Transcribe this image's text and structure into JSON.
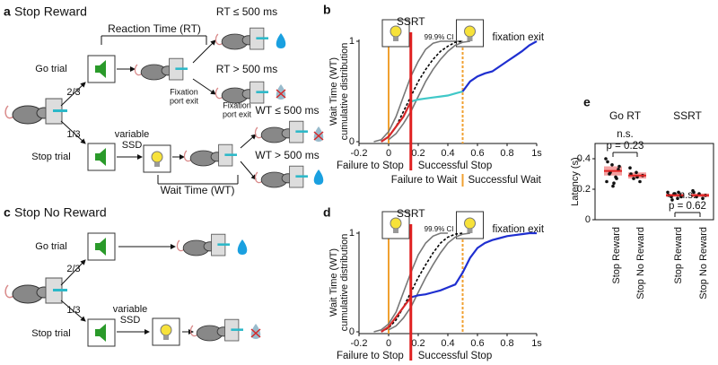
{
  "panel_a": {
    "letter": "a",
    "title": "Stop Reward",
    "rt_label": "Reaction Time (RT)",
    "go": "Go trial",
    "p_go": "2/3",
    "p_stop": "1/3",
    "stop": "Stop trial",
    "variable": "variable",
    "ssd": "SSD",
    "fix1": [
      "Fixation",
      "port exit"
    ],
    "fix2": [
      "Fixation",
      "port exit"
    ],
    "wt_label": "Wait Time (WT)",
    "rt_fast": "RT ≤ 500 ms",
    "rt_slow": "RT > 500 ms",
    "wt_fast": "WT ≤ 500 ms",
    "wt_slow": "WT > 500 ms"
  },
  "panel_c": {
    "letter": "c",
    "title": "Stop No Reward",
    "go": "Go trial",
    "p_go": "2/3",
    "p_stop": "1/3",
    "stop": "Stop trial",
    "variable": "variable",
    "ssd": "SSD"
  },
  "panel_letters": {
    "b": "b",
    "d": "d",
    "e": "e"
  },
  "chart_data": [
    {
      "type": "line",
      "y_label": [
        "Wait Time (WT)",
        "cumulative distribution"
      ],
      "x": [
        -0.1,
        -0.05,
        0,
        0.05,
        0.1,
        0.15,
        0.2,
        0.25,
        0.3,
        0.35,
        0.4,
        0.45,
        0.5,
        0.55,
        0.6,
        0.65,
        0.7,
        0.75,
        0.8,
        0.85,
        0.9,
        0.95,
        1.0
      ],
      "series": [
        {
          "color": "#777777",
          "values": [
            0,
            0.02,
            0.1,
            0.25,
            0.45,
            0.65,
            0.8,
            0.92,
            0.98,
            1,
            1,
            1,
            1,
            null,
            null,
            null,
            null,
            null,
            null,
            null,
            null,
            null,
            null
          ]
        },
        {
          "color": "#000000",
          "dashed": true,
          "values": [
            null,
            0,
            0.05,
            0.15,
            0.3,
            0.45,
            0.6,
            0.72,
            0.82,
            0.9,
            0.95,
            0.99,
            1,
            null,
            null,
            null,
            null,
            null,
            null,
            null,
            null,
            null,
            null
          ]
        },
        {
          "color": "#777777",
          "values": [
            null,
            null,
            0.02,
            0.08,
            0.18,
            0.3,
            0.45,
            0.6,
            0.72,
            0.82,
            0.9,
            0.96,
            0.99,
            1,
            null,
            null,
            null,
            null,
            null,
            null,
            null,
            null,
            null
          ]
        },
        {
          "color": "#d62728",
          "values": [
            null,
            0,
            0.05,
            0.15,
            0.25,
            0.4,
            null,
            null,
            null,
            null,
            null,
            null,
            null,
            null,
            null,
            null,
            null,
            null,
            null,
            null,
            null,
            null,
            null
          ]
        },
        {
          "color": "#40c8c8",
          "values": [
            null,
            null,
            null,
            null,
            null,
            0.4,
            0.42,
            0.43,
            0.44,
            0.45,
            0.46,
            0.48,
            0.5,
            null,
            null,
            null,
            null,
            null,
            null,
            null,
            null,
            null,
            null
          ]
        },
        {
          "color": "#1f2fd0",
          "values": [
            null,
            null,
            null,
            null,
            null,
            null,
            null,
            null,
            null,
            null,
            null,
            null,
            0.5,
            0.6,
            0.65,
            0.68,
            0.7,
            0.75,
            0.8,
            0.85,
            0.9,
            0.96,
            1
          ]
        }
      ],
      "xlim": [
        -0.2,
        1
      ],
      "xticks": [
        -0.2,
        0,
        0.2,
        0.4,
        0.6,
        0.8,
        {
          "value": 1,
          "label": "1s"
        }
      ],
      "ylim": [
        0,
        1
      ],
      "yticks": [
        0,
        1
      ],
      "vlines": [
        {
          "x": 0,
          "color": "#f0a030"
        },
        {
          "x": 0.5,
          "color": "#f0a030",
          "dashed": true
        }
      ],
      "ssrt": {
        "text": "SSRT",
        "x": 0.15,
        "color": "#e02020"
      },
      "annotations": [
        {
          "text": "99.9% CI",
          "color": "#777777"
        },
        {
          "text": "fixation exit",
          "color": "#111111"
        },
        {
          "text": "Failure to Stop",
          "color": "#d62728"
        },
        {
          "text": "Successful Stop",
          "color": "#111111"
        },
        {
          "text": "Failure to Wait",
          "color": "#40c8c8"
        },
        {
          "text": "Successful Wait",
          "color": "#1f2fd0"
        }
      ]
    },
    {
      "type": "line",
      "y_label": [
        "Wait Time (WT)",
        "cumulative distribution"
      ],
      "x": [
        -0.1,
        -0.05,
        0,
        0.05,
        0.1,
        0.15,
        0.2,
        0.25,
        0.3,
        0.35,
        0.4,
        0.45,
        0.5,
        0.55,
        0.6,
        0.65,
        0.7,
        0.75,
        0.8,
        0.85,
        0.9,
        0.95,
        1.0
      ],
      "series": [
        {
          "color": "#777777",
          "values": [
            0,
            0.02,
            0.08,
            0.2,
            0.4,
            0.6,
            0.78,
            0.9,
            0.97,
            1,
            1,
            null,
            null,
            null,
            null,
            null,
            null,
            null,
            null,
            null,
            null,
            null,
            null
          ]
        },
        {
          "color": "#000000",
          "dashed": true,
          "values": [
            null,
            0,
            0.04,
            0.12,
            0.25,
            0.4,
            0.55,
            0.68,
            0.8,
            0.9,
            0.96,
            0.99,
            1,
            null,
            null,
            null,
            null,
            null,
            null,
            null,
            null,
            null,
            null
          ]
        },
        {
          "color": "#777777",
          "values": [
            null,
            null,
            0.02,
            0.06,
            0.14,
            0.25,
            0.4,
            0.55,
            0.68,
            0.8,
            0.9,
            0.96,
            0.99,
            1,
            null,
            null,
            null,
            null,
            null,
            null,
            null,
            null,
            null
          ]
        },
        {
          "color": "#d62728",
          "values": [
            null,
            0,
            0.05,
            0.15,
            0.25,
            0.35,
            null,
            null,
            null,
            null,
            null,
            null,
            null,
            null,
            null,
            null,
            null,
            null,
            null,
            null,
            null,
            null,
            null
          ]
        },
        {
          "color": "#1f2fd0",
          "values": [
            null,
            null,
            null,
            null,
            null,
            0.35,
            0.37,
            0.38,
            0.4,
            0.42,
            0.45,
            0.48,
            0.6,
            0.75,
            0.85,
            0.9,
            0.93,
            0.95,
            0.97,
            0.98,
            0.99,
            1,
            1
          ]
        }
      ],
      "xlim": [
        -0.2,
        1
      ],
      "xticks": [
        -0.2,
        0,
        0.2,
        0.4,
        0.6,
        0.8,
        {
          "value": 1,
          "label": "1s"
        }
      ],
      "ylim": [
        0,
        1
      ],
      "yticks": [
        0,
        1
      ],
      "vlines": [
        {
          "x": 0,
          "color": "#f0a030"
        },
        {
          "x": 0.5,
          "color": "#f0a030",
          "dashed": true
        }
      ],
      "ssrt": {
        "text": "SSRT",
        "x": 0.15,
        "color": "#e02020"
      },
      "annotations": [
        {
          "text": "99.9% CI",
          "color": "#777777"
        },
        {
          "text": "fixation exit",
          "color": "#111111"
        },
        {
          "text": "Failure to Stop",
          "color": "#d62728"
        },
        {
          "text": "Successful Stop",
          "color": "#1f2fd0"
        }
      ]
    },
    {
      "type": "strip",
      "y_label": "Latency (s)",
      "groups": [
        "Go RT",
        "SSRT"
      ],
      "categories": [
        "Stop Reward",
        "Stop No Reward",
        "Stop Reward",
        "Stop No Reward"
      ],
      "means": [
        0.32,
        0.29,
        0.16,
        0.16
      ],
      "sem": [
        0.03,
        0.02,
        0.01,
        0.012
      ],
      "mean_color": "#e02020",
      "point_color": "#111111",
      "points": [
        [
          0.4,
          0.36,
          0.33,
          0.3,
          0.28,
          0.25,
          0.22,
          0.35,
          0.31,
          0.27,
          0.38,
          0.24
        ],
        [
          0.34,
          0.31,
          0.29,
          0.27,
          0.25,
          0.3,
          0.28
        ],
        [
          0.18,
          0.17,
          0.16,
          0.15,
          0.14,
          0.16,
          0.17,
          0.15,
          0.13,
          0.18
        ],
        [
          0.19,
          0.17,
          0.16,
          0.15,
          0.14,
          0.18
        ]
      ],
      "ylim": [
        0,
        0.5
      ],
      "yticks": [
        0,
        0.2,
        0.4
      ],
      "annotations": [
        {
          "text": "n.s."
        },
        {
          "text": "p = 0.23"
        },
        {
          "text": "n.s."
        },
        {
          "text": "p = 0.62"
        }
      ]
    }
  ]
}
